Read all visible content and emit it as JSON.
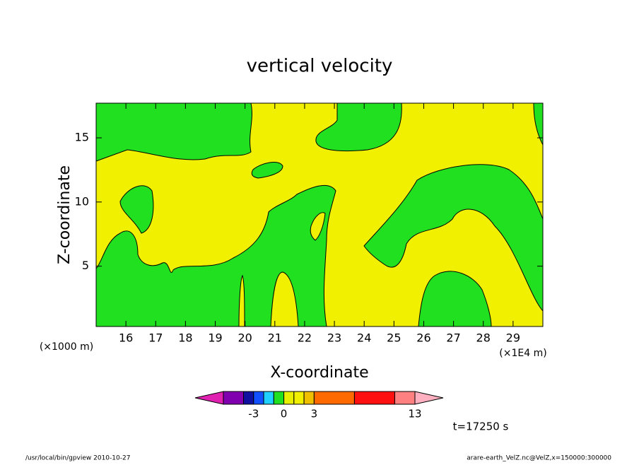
{
  "chart_data": {
    "type": "contour",
    "title": "vertical velocity",
    "x_label": "X-coordinate",
    "y_label": "Z-coordinate",
    "x_unit_left": "(×1000 m)",
    "x_unit_right": "(×1E4 m)",
    "xlim": [
      15,
      30
    ],
    "xticks": [
      16,
      17,
      18,
      19,
      20,
      21,
      22,
      23,
      24,
      25,
      26,
      27,
      28,
      29
    ],
    "ylim": [
      0.3,
      17.7
    ],
    "yticks": [
      5,
      10,
      15
    ],
    "colorbar": {
      "levels": [
        -6,
        -4,
        -3,
        -2,
        -1,
        0,
        1,
        2,
        3,
        7,
        11,
        13
      ],
      "colors": [
        "#8000b0",
        "#1010a0",
        "#1050ff",
        "#20d0ff",
        "#20e020",
        "#e8f000",
        "#f0f000",
        "#f0c000",
        "#ff6a00",
        "#ff1010",
        "#ff8080"
      ],
      "extend_colors": [
        "#e020b0",
        "#ffb0c0"
      ],
      "ticks": [
        -3,
        0,
        3,
        13
      ]
    },
    "time_label": "t=17250 s",
    "footer_left": "/usr/local/bin/gpview  2010-10-27",
    "footer_right": "arare-earth_VelZ.nc@VelZ,x=150000:300000"
  }
}
